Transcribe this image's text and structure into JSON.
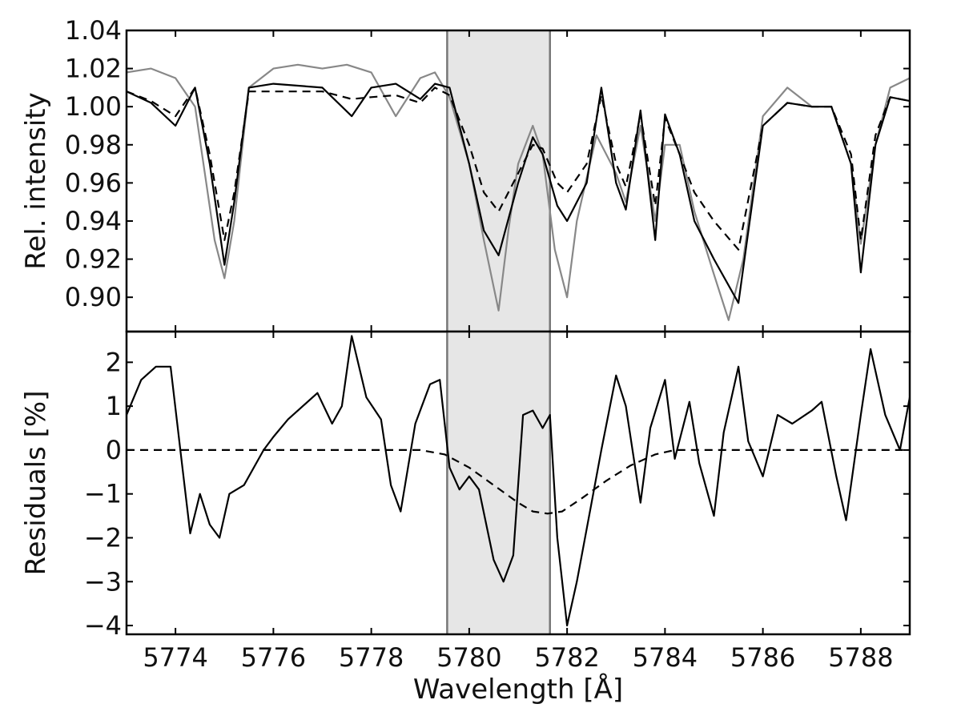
{
  "chart_data": [
    {
      "type": "line",
      "panel": "top",
      "ylabel": "Rel. intensity",
      "xlim": [
        5773.0,
        5789.0
      ],
      "ylim": [
        0.882,
        1.04
      ],
      "yticks": [
        0.9,
        0.92,
        0.94,
        0.96,
        0.98,
        1.0,
        1.02,
        1.04
      ],
      "ytick_labels": [
        "0.90",
        "0.92",
        "0.94",
        "0.96",
        "0.98",
        "1.00",
        "1.02",
        "1.04"
      ],
      "shaded_region": [
        5779.55,
        5781.65
      ],
      "series": [
        {
          "color": "#888888",
          "style": "solid",
          "x": [
            5773.0,
            5773.5,
            5774.0,
            5774.4,
            5774.8,
            5775.0,
            5775.2,
            5775.5,
            5776.0,
            5776.5,
            5777.0,
            5777.5,
            5778.0,
            5778.5,
            5779.0,
            5779.3,
            5779.6,
            5780.0,
            5780.3,
            5780.6,
            5780.8,
            5781.0,
            5781.3,
            5781.5,
            5781.75,
            5782.0,
            5782.2,
            5782.6,
            5783.0,
            5783.2,
            5783.5,
            5783.8,
            5784.0,
            5784.3,
            5784.6,
            5785.0,
            5785.3,
            5785.6,
            5786.0,
            5786.5,
            5787.0,
            5787.4,
            5787.8,
            5788.0,
            5788.3,
            5788.6,
            5789.0
          ],
          "y": [
            1.018,
            1.02,
            1.015,
            1.0,
            0.93,
            0.91,
            0.94,
            1.01,
            1.02,
            1.022,
            1.02,
            1.022,
            1.018,
            0.995,
            1.015,
            1.018,
            1.005,
            0.97,
            0.93,
            0.893,
            0.935,
            0.97,
            0.99,
            0.975,
            0.925,
            0.9,
            0.94,
            0.985,
            0.965,
            0.95,
            0.99,
            0.94,
            0.98,
            0.98,
            0.945,
            0.912,
            0.888,
            0.92,
            0.995,
            1.01,
            1.0,
            1.0,
            0.97,
            0.928,
            0.98,
            1.01,
            1.015
          ]
        },
        {
          "color": "#000000",
          "style": "solid",
          "x": [
            5773.0,
            5773.5,
            5774.0,
            5774.4,
            5774.7,
            5775.0,
            5775.2,
            5775.5,
            5776.0,
            5777.0,
            5777.6,
            5778.0,
            5778.5,
            5779.0,
            5779.3,
            5779.6,
            5780.0,
            5780.3,
            5780.6,
            5781.0,
            5781.3,
            5781.5,
            5781.8,
            5782.0,
            5782.4,
            5782.7,
            5783.0,
            5783.2,
            5783.5,
            5783.8,
            5784.0,
            5784.3,
            5784.6,
            5785.0,
            5785.5,
            5786.0,
            5786.5,
            5787.0,
            5787.4,
            5787.8,
            5788.0,
            5788.3,
            5788.6,
            5789.0
          ],
          "y": [
            1.008,
            1.002,
            0.99,
            1.01,
            0.97,
            0.917,
            0.95,
            1.01,
            1.012,
            1.01,
            0.995,
            1.01,
            1.012,
            1.004,
            1.012,
            1.01,
            0.97,
            0.935,
            0.922,
            0.96,
            0.984,
            0.975,
            0.948,
            0.94,
            0.96,
            1.01,
            0.96,
            0.946,
            0.998,
            0.93,
            0.996,
            0.975,
            0.94,
            0.92,
            0.897,
            0.99,
            1.002,
            1.0,
            1.0,
            0.97,
            0.913,
            0.98,
            1.005,
            1.003
          ]
        },
        {
          "color": "#000000",
          "style": "dashed",
          "x": [
            5773.0,
            5773.5,
            5774.0,
            5774.4,
            5774.7,
            5775.0,
            5775.2,
            5775.5,
            5776.0,
            5777.0,
            5777.6,
            5778.0,
            5778.5,
            5779.0,
            5779.3,
            5779.6,
            5780.0,
            5780.3,
            5780.6,
            5781.0,
            5781.3,
            5781.5,
            5781.8,
            5782.0,
            5782.4,
            5782.7,
            5783.0,
            5783.2,
            5783.5,
            5783.8,
            5784.0,
            5784.3,
            5784.6,
            5785.0,
            5785.5,
            5786.0,
            5786.5,
            5787.0,
            5787.4,
            5787.8,
            5788.0,
            5788.3,
            5788.6,
            5789.0
          ],
          "y": [
            1.008,
            1.003,
            0.995,
            1.01,
            0.975,
            0.93,
            0.955,
            1.008,
            1.008,
            1.008,
            1.004,
            1.005,
            1.006,
            1.002,
            1.01,
            1.006,
            0.98,
            0.955,
            0.945,
            0.965,
            0.98,
            0.978,
            0.96,
            0.955,
            0.97,
            1.006,
            0.97,
            0.958,
            0.996,
            0.948,
            0.994,
            0.975,
            0.955,
            0.94,
            0.925,
            0.99,
            1.002,
            1.0,
            1.0,
            0.975,
            0.93,
            0.985,
            1.005,
            1.003
          ]
        }
      ]
    },
    {
      "type": "line",
      "panel": "bottom",
      "xlabel": "Wavelength [Å]",
      "ylabel": "Residuals [%]",
      "xlim": [
        5773.0,
        5789.0
      ],
      "ylim": [
        -4.2,
        2.7
      ],
      "xticks": [
        5774,
        5776,
        5778,
        5780,
        5782,
        5784,
        5786,
        5788
      ],
      "xtick_labels": [
        "5774",
        "5776",
        "5778",
        "5780",
        "5782",
        "5784",
        "5786",
        "5788"
      ],
      "yticks": [
        -4,
        -3,
        -2,
        -1,
        0,
        1,
        2
      ],
      "ytick_labels": [
        "−4",
        "−3",
        "−2",
        "−1",
        "0",
        "1",
        "2"
      ],
      "shaded_region": [
        5779.55,
        5781.65
      ],
      "series": [
        {
          "color": "#000000",
          "style": "solid",
          "x": [
            5773.0,
            5773.3,
            5773.6,
            5773.9,
            5774.1,
            5774.3,
            5774.5,
            5774.7,
            5774.9,
            5775.1,
            5775.4,
            5775.8,
            5776.0,
            5776.3,
            5776.6,
            5776.9,
            5777.2,
            5777.4,
            5777.6,
            5777.9,
            5778.2,
            5778.4,
            5778.6,
            5778.9,
            5779.2,
            5779.4,
            5779.6,
            5779.8,
            5780.0,
            5780.2,
            5780.5,
            5780.7,
            5780.9,
            5781.1,
            5781.3,
            5781.5,
            5781.65,
            5781.8,
            5782.0,
            5782.2,
            5782.5,
            5782.7,
            5783.0,
            5783.2,
            5783.5,
            5783.7,
            5784.0,
            5784.2,
            5784.5,
            5784.7,
            5785.0,
            5785.2,
            5785.5,
            5785.7,
            5786.0,
            5786.3,
            5786.6,
            5787.0,
            5787.2,
            5787.5,
            5787.7,
            5788.0,
            5788.2,
            5788.5,
            5788.8,
            5789.0
          ],
          "y": [
            0.8,
            1.6,
            1.9,
            1.9,
            0.0,
            -1.9,
            -1.0,
            -1.7,
            -2.0,
            -1.0,
            -0.8,
            0.0,
            0.3,
            0.7,
            1.0,
            1.3,
            0.6,
            1.0,
            2.6,
            1.2,
            0.7,
            -0.8,
            -1.4,
            0.6,
            1.5,
            1.6,
            -0.4,
            -0.9,
            -0.6,
            -0.9,
            -2.5,
            -3.0,
            -2.4,
            0.8,
            0.9,
            0.5,
            0.8,
            -2.0,
            -4.0,
            -3.0,
            -1.2,
            0.0,
            1.7,
            1.0,
            -1.2,
            0.5,
            1.6,
            -0.2,
            1.1,
            -0.3,
            -1.5,
            0.4,
            1.9,
            0.2,
            -0.6,
            0.8,
            0.6,
            0.9,
            1.1,
            -0.6,
            -1.6,
            0.8,
            2.3,
            0.8,
            0.0,
            1.2
          ]
        },
        {
          "color": "#000000",
          "style": "dashed",
          "x": [
            5773.0,
            5779.0,
            5779.5,
            5780.0,
            5780.5,
            5781.0,
            5781.3,
            5781.6,
            5781.9,
            5782.3,
            5782.8,
            5783.3,
            5783.8,
            5784.2,
            5789.0
          ],
          "y": [
            0.0,
            0.0,
            -0.1,
            -0.4,
            -0.8,
            -1.2,
            -1.4,
            -1.45,
            -1.4,
            -1.1,
            -0.7,
            -0.35,
            -0.1,
            0.0,
            0.0
          ]
        }
      ]
    }
  ]
}
